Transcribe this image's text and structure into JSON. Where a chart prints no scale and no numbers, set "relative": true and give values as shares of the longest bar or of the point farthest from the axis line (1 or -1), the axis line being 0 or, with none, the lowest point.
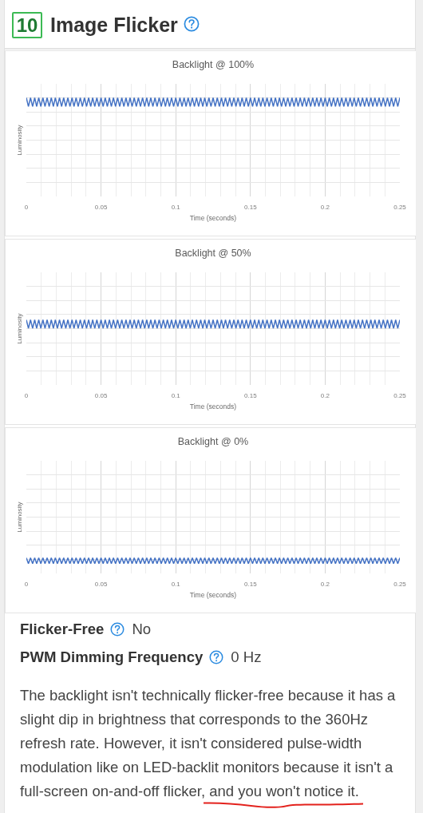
{
  "chart_data": [
    {
      "type": "other",
      "title": "Image Flicker",
      "annotations": [
        "10"
      ]
    },
    {
      "type": "line",
      "title": "Backlight @ 100%",
      "xlabel": "Time (seconds)",
      "ylabel": "Luminosity",
      "relative": true,
      "grid": true,
      "color": "#4472c4",
      "xlim": [
        0,
        0.25
      ],
      "ylim": [
        0,
        1.14
      ],
      "xticks": [
        0,
        {
          "value": 0.01,
          "label": null
        },
        {
          "value": 0.02,
          "label": null
        },
        {
          "value": 0.03,
          "label": null
        },
        {
          "value": 0.04,
          "label": null
        },
        0.05,
        {
          "value": 0.06,
          "label": null
        },
        {
          "value": 0.07,
          "label": null
        },
        {
          "value": 0.08,
          "label": null
        },
        {
          "value": 0.09,
          "label": null
        },
        0.1,
        {
          "value": 0.11,
          "label": null
        },
        {
          "value": 0.12,
          "label": null
        },
        {
          "value": 0.13,
          "label": null
        },
        {
          "value": 0.14,
          "label": null
        },
        0.15,
        {
          "value": 0.16,
          "label": null
        },
        {
          "value": 0.17,
          "label": null
        },
        {
          "value": 0.18,
          "label": null
        },
        {
          "value": 0.19,
          "label": null
        },
        0.2,
        {
          "value": 0.21,
          "label": null
        },
        {
          "value": 0.22,
          "label": null
        },
        {
          "value": 0.23,
          "label": null
        },
        {
          "value": 0.24,
          "label": null
        },
        0.25
      ],
      "x": [
        0,
        0.0014,
        0.0028,
        0.0042,
        0.0056,
        0.0069,
        0.0083,
        0.0097,
        0.0111,
        0.0125,
        0.0139,
        0.0153,
        0.0167,
        0.0181,
        0.0194,
        0.0208,
        0.0222,
        0.0236,
        0.025,
        0.0264,
        0.0278,
        0.0292,
        0.0306,
        0.0319,
        0.0333,
        0.0347,
        0.0361,
        0.0375,
        0.0389,
        0.0403,
        0.0417,
        0.0431,
        0.0444,
        0.0458,
        0.0472,
        0.0486,
        0.05,
        0.0514,
        0.0528,
        0.0542,
        0.0556,
        0.0569,
        0.0583,
        0.0597,
        0.0611,
        0.0625,
        0.0639,
        0.0653,
        0.0667,
        0.0681,
        0.0694,
        0.0708,
        0.0722,
        0.0736,
        0.075,
        0.0764,
        0.0778,
        0.0792,
        0.0806,
        0.0819,
        0.0833,
        0.0847,
        0.0861,
        0.0875,
        0.0889,
        0.0903,
        0.0917,
        0.0931,
        0.0944,
        0.0958,
        0.0972,
        0.0986,
        0.1,
        0.1014,
        0.1028,
        0.1042,
        0.1056,
        0.1069,
        0.1083,
        0.1097,
        0.1111,
        0.1125,
        0.1139,
        0.1153,
        0.1167,
        0.1181,
        0.1194,
        0.1208,
        0.1222,
        0.1236,
        0.125,
        0.1264,
        0.1278,
        0.1292,
        0.1306,
        0.1319,
        0.1333,
        0.1347,
        0.1361,
        0.1375,
        0.1389,
        0.1403,
        0.1417,
        0.1431,
        0.1444,
        0.1458,
        0.1472,
        0.1486,
        0.15,
        0.1514,
        0.1528,
        0.1542,
        0.1556,
        0.1569,
        0.1583,
        0.1597,
        0.1611,
        0.1625,
        0.1639,
        0.1653,
        0.1667,
        0.1681,
        0.1694,
        0.1708,
        0.1722,
        0.1736,
        0.175,
        0.1764,
        0.1778,
        0.1792,
        0.1806,
        0.1819,
        0.1833,
        0.1847,
        0.1861,
        0.1875,
        0.1889,
        0.1903,
        0.1917,
        0.1931,
        0.1944,
        0.1958,
        0.1972,
        0.1986,
        0.2,
        0.2014,
        0.2028,
        0.2042,
        0.2056,
        0.2069,
        0.2083,
        0.2097,
        0.2111,
        0.2125,
        0.2139,
        0.2153,
        0.2167,
        0.2181,
        0.2194,
        0.2208,
        0.2222,
        0.2236,
        0.225,
        0.2264,
        0.2278,
        0.2292,
        0.2306,
        0.2319,
        0.2333,
        0.2347,
        0.2361,
        0.2375,
        0.2389,
        0.2403,
        0.2417,
        0.2431,
        0.2444,
        0.2458,
        0.2472,
        0.2486,
        0.25
      ],
      "values": [
        1,
        0.91,
        1,
        0.91,
        1,
        0.91,
        1,
        0.91,
        1,
        0.91,
        1,
        0.91,
        1,
        0.91,
        1,
        0.91,
        1,
        0.91,
        1,
        0.91,
        1,
        0.91,
        1,
        0.91,
        1,
        0.91,
        1,
        0.91,
        1,
        0.91,
        1,
        0.91,
        1,
        0.91,
        1,
        0.91,
        1,
        0.91,
        1,
        0.91,
        1,
        0.91,
        1,
        0.91,
        1,
        0.91,
        1,
        0.91,
        1,
        0.91,
        1,
        0.91,
        1,
        0.91,
        1,
        0.91,
        1,
        0.91,
        1,
        0.91,
        1,
        0.91,
        1,
        0.91,
        1,
        0.91,
        1,
        0.91,
        1,
        0.91,
        1,
        0.91,
        1,
        0.91,
        1,
        0.91,
        1,
        0.91,
        1,
        0.91,
        1,
        0.91,
        1,
        0.91,
        1,
        0.91,
        1,
        0.91,
        1,
        0.91,
        1,
        0.91,
        1,
        0.91,
        1,
        0.91,
        1,
        0.91,
        1,
        0.91,
        1,
        0.91,
        1,
        0.91,
        1,
        0.91,
        1,
        0.91,
        1,
        0.91,
        1,
        0.91,
        1,
        0.91,
        1,
        0.91,
        1,
        0.91,
        1,
        0.91,
        1,
        0.91,
        1,
        0.91,
        1,
        0.91,
        1,
        0.91,
        1,
        0.91,
        1,
        0.91,
        1,
        0.91,
        1,
        0.91,
        1,
        0.91,
        1,
        0.91,
        1,
        0.91,
        1,
        0.91,
        1,
        0.91,
        1,
        0.91,
        1,
        0.91,
        1,
        0.91,
        1,
        0.91,
        1,
        0.91,
        1,
        0.91,
        1,
        0.91,
        1,
        0.91,
        1,
        0.91,
        1,
        0.91,
        1,
        0.91,
        1,
        0.91,
        1,
        0.91,
        1,
        0.91,
        1,
        0.91,
        1,
        0.91,
        1,
        0.91,
        1
      ]
    },
    {
      "type": "line",
      "title": "Backlight @ 50%",
      "xlabel": "Time (seconds)",
      "ylabel": "Luminosity",
      "relative": true,
      "grid": true,
      "color": "#4472c4",
      "xlim": [
        0,
        0.25
      ],
      "ylim": [
        0,
        1.73
      ],
      "xticks": [
        0,
        {
          "value": 0.01,
          "label": null
        },
        {
          "value": 0.02,
          "label": null
        },
        {
          "value": 0.03,
          "label": null
        },
        {
          "value": 0.04,
          "label": null
        },
        0.05,
        {
          "value": 0.06,
          "label": null
        },
        {
          "value": 0.07,
          "label": null
        },
        {
          "value": 0.08,
          "label": null
        },
        {
          "value": 0.09,
          "label": null
        },
        0.1,
        {
          "value": 0.11,
          "label": null
        },
        {
          "value": 0.12,
          "label": null
        },
        {
          "value": 0.13,
          "label": null
        },
        {
          "value": 0.14,
          "label": null
        },
        0.15,
        {
          "value": 0.16,
          "label": null
        },
        {
          "value": 0.17,
          "label": null
        },
        {
          "value": 0.18,
          "label": null
        },
        {
          "value": 0.19,
          "label": null
        },
        0.2,
        {
          "value": 0.21,
          "label": null
        },
        {
          "value": 0.22,
          "label": null
        },
        {
          "value": 0.23,
          "label": null
        },
        {
          "value": 0.24,
          "label": null
        },
        0.25
      ],
      "x": [
        0,
        0.0014,
        0.0028,
        0.0042,
        0.0056,
        0.0069,
        0.0083,
        0.0097,
        0.0111,
        0.0125,
        0.0139,
        0.0153,
        0.0167,
        0.0181,
        0.0194,
        0.0208,
        0.0222,
        0.0236,
        0.025,
        0.0264,
        0.0278,
        0.0292,
        0.0306,
        0.0319,
        0.0333,
        0.0347,
        0.0361,
        0.0375,
        0.0389,
        0.0403,
        0.0417,
        0.0431,
        0.0444,
        0.0458,
        0.0472,
        0.0486,
        0.05,
        0.0514,
        0.0528,
        0.0542,
        0.0556,
        0.0569,
        0.0583,
        0.0597,
        0.0611,
        0.0625,
        0.0639,
        0.0653,
        0.0667,
        0.0681,
        0.0694,
        0.0708,
        0.0722,
        0.0736,
        0.075,
        0.0764,
        0.0778,
        0.0792,
        0.0806,
        0.0819,
        0.0833,
        0.0847,
        0.0861,
        0.0875,
        0.0889,
        0.0903,
        0.0917,
        0.0931,
        0.0944,
        0.0958,
        0.0972,
        0.0986,
        0.1,
        0.1014,
        0.1028,
        0.1042,
        0.1056,
        0.1069,
        0.1083,
        0.1097,
        0.1111,
        0.1125,
        0.1139,
        0.1153,
        0.1167,
        0.1181,
        0.1194,
        0.1208,
        0.1222,
        0.1236,
        0.125,
        0.1264,
        0.1278,
        0.1292,
        0.1306,
        0.1319,
        0.1333,
        0.1347,
        0.1361,
        0.1375,
        0.1389,
        0.1403,
        0.1417,
        0.1431,
        0.1444,
        0.1458,
        0.1472,
        0.1486,
        0.15,
        0.1514,
        0.1528,
        0.1542,
        0.1556,
        0.1569,
        0.1583,
        0.1597,
        0.1611,
        0.1625,
        0.1639,
        0.1653,
        0.1667,
        0.1681,
        0.1694,
        0.1708,
        0.1722,
        0.1736,
        0.175,
        0.1764,
        0.1778,
        0.1792,
        0.1806,
        0.1819,
        0.1833,
        0.1847,
        0.1861,
        0.1875,
        0.1889,
        0.1903,
        0.1917,
        0.1931,
        0.1944,
        0.1958,
        0.1972,
        0.1986,
        0.2,
        0.2014,
        0.2028,
        0.2042,
        0.2056,
        0.2069,
        0.2083,
        0.2097,
        0.2111,
        0.2125,
        0.2139,
        0.2153,
        0.2167,
        0.2181,
        0.2194,
        0.2208,
        0.2222,
        0.2236,
        0.225,
        0.2264,
        0.2278,
        0.2292,
        0.2306,
        0.2319,
        0.2333,
        0.2347,
        0.2361,
        0.2375,
        0.2389,
        0.2403,
        0.2417,
        0.2431,
        0.2444,
        0.2458,
        0.2472,
        0.2486,
        0.25
      ],
      "values": [
        1,
        0.87,
        1,
        0.87,
        1,
        0.87,
        1,
        0.87,
        1,
        0.87,
        1,
        0.87,
        1,
        0.87,
        1,
        0.87,
        1,
        0.87,
        1,
        0.87,
        1,
        0.87,
        1,
        0.87,
        1,
        0.87,
        1,
        0.87,
        1,
        0.87,
        1,
        0.87,
        1,
        0.87,
        1,
        0.87,
        1,
        0.87,
        1,
        0.87,
        1,
        0.87,
        1,
        0.87,
        1,
        0.87,
        1,
        0.87,
        1,
        0.87,
        1,
        0.87,
        1,
        0.87,
        1,
        0.87,
        1,
        0.87,
        1,
        0.87,
        1,
        0.87,
        1,
        0.87,
        1,
        0.87,
        1,
        0.87,
        1,
        0.87,
        1,
        0.87,
        1,
        0.87,
        1,
        0.87,
        1,
        0.87,
        1,
        0.87,
        1,
        0.87,
        1,
        0.87,
        1,
        0.87,
        1,
        0.87,
        1,
        0.87,
        1,
        0.87,
        1,
        0.87,
        1,
        0.87,
        1,
        0.87,
        1,
        0.87,
        1,
        0.87,
        1,
        0.87,
        1,
        0.87,
        1,
        0.87,
        1,
        0.87,
        1,
        0.87,
        1,
        0.87,
        1,
        0.87,
        1,
        0.87,
        1,
        0.87,
        1,
        0.87,
        1,
        0.87,
        1,
        0.87,
        1,
        0.87,
        1,
        0.87,
        1,
        0.87,
        1,
        0.87,
        1,
        0.87,
        1,
        0.87,
        1,
        0.87,
        1,
        0.87,
        1,
        0.87,
        1,
        0.87,
        1,
        0.87,
        1,
        0.87,
        1,
        0.87,
        1,
        0.87,
        1,
        0.87,
        1,
        0.87,
        1,
        0.87,
        1,
        0.87,
        1,
        0.87,
        1,
        0.87,
        1,
        0.87,
        1,
        0.87,
        1,
        0.87,
        1,
        0.87,
        1,
        0.87,
        1,
        0.87,
        1,
        0.87,
        1
      ]
    },
    {
      "type": "line",
      "title": "Backlight @ 0%",
      "xlabel": "Time (seconds)",
      "ylabel": "Luminosity",
      "relative": true,
      "grid": true,
      "color": "#4472c4",
      "xlim": [
        0,
        0.25
      ],
      "ylim": [
        0,
        7.2
      ],
      "xticks": [
        0,
        {
          "value": 0.01,
          "label": null
        },
        {
          "value": 0.02,
          "label": null
        },
        {
          "value": 0.03,
          "label": null
        },
        {
          "value": 0.04,
          "label": null
        },
        0.05,
        {
          "value": 0.06,
          "label": null
        },
        {
          "value": 0.07,
          "label": null
        },
        {
          "value": 0.08,
          "label": null
        },
        {
          "value": 0.09,
          "label": null
        },
        0.1,
        {
          "value": 0.11,
          "label": null
        },
        {
          "value": 0.12,
          "label": null
        },
        {
          "value": 0.13,
          "label": null
        },
        {
          "value": 0.14,
          "label": null
        },
        0.15,
        {
          "value": 0.16,
          "label": null
        },
        {
          "value": 0.17,
          "label": null
        },
        {
          "value": 0.18,
          "label": null
        },
        {
          "value": 0.19,
          "label": null
        },
        0.2,
        {
          "value": 0.21,
          "label": null
        },
        {
          "value": 0.22,
          "label": null
        },
        {
          "value": 0.23,
          "label": null
        },
        {
          "value": 0.24,
          "label": null
        },
        0.25
      ],
      "x": [
        0,
        0.0014,
        0.0028,
        0.0042,
        0.0056,
        0.0069,
        0.0083,
        0.0097,
        0.0111,
        0.0125,
        0.0139,
        0.0153,
        0.0167,
        0.0181,
        0.0194,
        0.0208,
        0.0222,
        0.0236,
        0.025,
        0.0264,
        0.0278,
        0.0292,
        0.0306,
        0.0319,
        0.0333,
        0.0347,
        0.0361,
        0.0375,
        0.0389,
        0.0403,
        0.0417,
        0.0431,
        0.0444,
        0.0458,
        0.0472,
        0.0486,
        0.05,
        0.0514,
        0.0528,
        0.0542,
        0.0556,
        0.0569,
        0.0583,
        0.0597,
        0.0611,
        0.0625,
        0.0639,
        0.0653,
        0.0667,
        0.0681,
        0.0694,
        0.0708,
        0.0722,
        0.0736,
        0.075,
        0.0764,
        0.0778,
        0.0792,
        0.0806,
        0.0819,
        0.0833,
        0.0847,
        0.0861,
        0.0875,
        0.0889,
        0.0903,
        0.0917,
        0.0931,
        0.0944,
        0.0958,
        0.0972,
        0.0986,
        0.1,
        0.1014,
        0.1028,
        0.1042,
        0.1056,
        0.1069,
        0.1083,
        0.1097,
        0.1111,
        0.1125,
        0.1139,
        0.1153,
        0.1167,
        0.1181,
        0.1194,
        0.1208,
        0.1222,
        0.1236,
        0.125,
        0.1264,
        0.1278,
        0.1292,
        0.1306,
        0.1319,
        0.1333,
        0.1347,
        0.1361,
        0.1375,
        0.1389,
        0.1403,
        0.1417,
        0.1431,
        0.1444,
        0.1458,
        0.1472,
        0.1486,
        0.15,
        0.1514,
        0.1528,
        0.1542,
        0.1556,
        0.1569,
        0.1583,
        0.1597,
        0.1611,
        0.1625,
        0.1639,
        0.1653,
        0.1667,
        0.1681,
        0.1694,
        0.1708,
        0.1722,
        0.1736,
        0.175,
        0.1764,
        0.1778,
        0.1792,
        0.1806,
        0.1819,
        0.1833,
        0.1847,
        0.1861,
        0.1875,
        0.1889,
        0.1903,
        0.1917,
        0.1931,
        0.1944,
        0.1958,
        0.1972,
        0.1986,
        0.2,
        0.2014,
        0.2028,
        0.2042,
        0.2056,
        0.2069,
        0.2083,
        0.2097,
        0.2111,
        0.2125,
        0.2139,
        0.2153,
        0.2167,
        0.2181,
        0.2194,
        0.2208,
        0.2222,
        0.2236,
        0.225,
        0.2264,
        0.2278,
        0.2292,
        0.2306,
        0.2319,
        0.2333,
        0.2347,
        0.2361,
        0.2375,
        0.2389,
        0.2403,
        0.2417,
        0.2431,
        0.2444,
        0.2458,
        0.2472,
        0.2486,
        0.25
      ],
      "values": [
        1,
        0.62,
        1,
        0.62,
        1,
        0.62,
        1,
        0.62,
        1,
        0.62,
        1,
        0.62,
        1,
        0.62,
        1,
        0.62,
        1,
        0.62,
        1,
        0.62,
        1,
        0.62,
        1,
        0.62,
        1,
        0.62,
        1,
        0.62,
        1,
        0.62,
        1,
        0.62,
        1,
        0.62,
        1,
        0.62,
        1,
        0.62,
        1,
        0.62,
        1,
        0.62,
        1,
        0.62,
        1,
        0.62,
        1,
        0.62,
        1,
        0.62,
        1,
        0.62,
        1,
        0.62,
        1,
        0.62,
        1,
        0.62,
        1,
        0.62,
        1,
        0.62,
        1,
        0.62,
        1,
        0.62,
        1,
        0.62,
        1,
        0.62,
        1,
        0.62,
        1,
        0.62,
        1,
        0.62,
        1,
        0.62,
        1,
        0.62,
        1,
        0.62,
        1,
        0.62,
        1,
        0.62,
        1,
        0.62,
        1,
        0.62,
        1,
        0.62,
        1,
        0.62,
        1,
        0.62,
        1,
        0.62,
        1,
        0.62,
        1,
        0.62,
        1,
        0.62,
        1,
        0.62,
        1,
        0.62,
        1,
        0.62,
        1,
        0.62,
        1,
        0.62,
        1,
        0.62,
        1,
        0.62,
        1,
        0.62,
        1,
        0.62,
        1,
        0.62,
        1,
        0.62,
        1,
        0.62,
        1,
        0.62,
        1,
        0.62,
        1,
        0.62,
        1,
        0.62,
        1,
        0.62,
        1,
        0.62,
        1,
        0.62,
        1,
        0.62,
        1,
        0.62,
        1,
        0.62,
        1,
        0.62,
        1,
        0.62,
        1,
        0.62,
        1,
        0.62,
        1,
        0.62,
        1,
        0.62,
        1,
        0.62,
        1,
        0.62,
        1,
        0.62,
        1,
        0.62,
        1,
        0.62,
        1,
        0.62,
        1,
        0.62,
        1,
        0.62,
        1,
        0.62,
        1,
        0.62,
        1
      ]
    },
    {
      "type": "other",
      "annotations": [
        "Flicker-Free",
        "No",
        "PWM Dimming Frequency",
        "0 Hz",
        "The backlight isn't technically flicker-free because it has a slight dip in brightness that corresponds to the 360Hz refresh rate. However, it isn't considered pulse-width modulation like on LED-backlit monitors because it isn't a full-screen on-and-off flicker, and you won't notice it."
      ]
    }
  ]
}
